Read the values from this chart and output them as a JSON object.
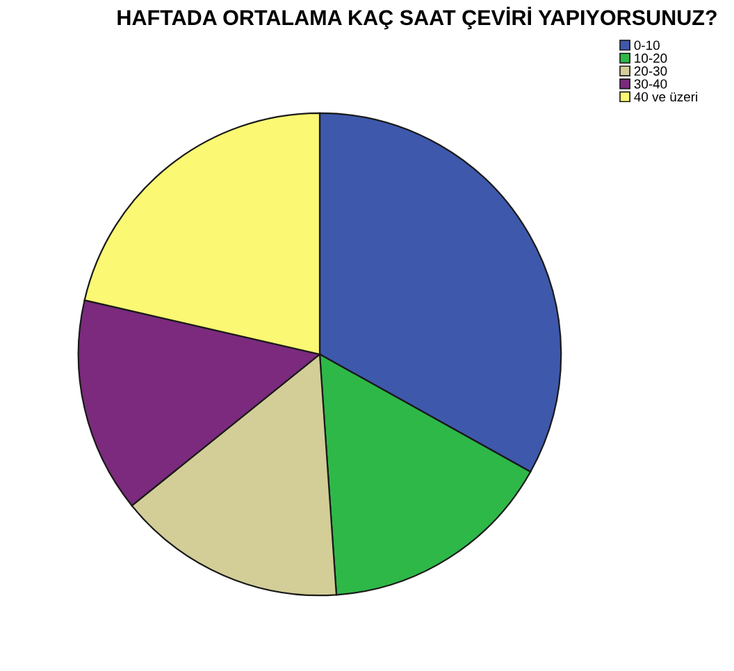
{
  "chart_data": {
    "type": "pie",
    "title": "HAFTADA ORTALAMA KAÇ SAAT ÇEVİRİ YAPIYORSUNUZ?",
    "categories": [
      "0-10",
      "10-20",
      "20-30",
      "30-40",
      "40 ve üzeri"
    ],
    "values": [
      33.1,
      15.8,
      15.3,
      14.4,
      21.4
    ],
    "colors": [
      "#3e58ac",
      "#2eb848",
      "#d3ce97",
      "#7b2a7e",
      "#fbf873"
    ],
    "legend": "top right"
  }
}
